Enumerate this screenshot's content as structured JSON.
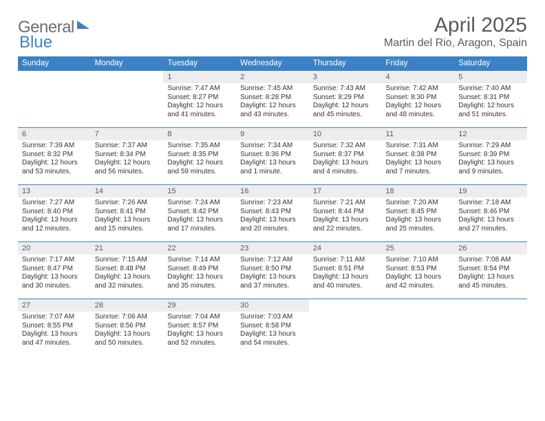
{
  "logo": {
    "part1": "General",
    "part2": "Blue"
  },
  "title": "April 2025",
  "location": "Martin del Rio, Aragon, Spain",
  "colors": {
    "header_bg": "#3b82c4",
    "header_text": "#ffffff",
    "daynum_bg": "#ededed",
    "border": "#3b82c4",
    "text": "#333333",
    "title": "#555a60"
  },
  "weekdays": [
    "Sunday",
    "Monday",
    "Tuesday",
    "Wednesday",
    "Thursday",
    "Friday",
    "Saturday"
  ],
  "weeks": [
    [
      {
        "n": "",
        "d": ""
      },
      {
        "n": "",
        "d": ""
      },
      {
        "n": "1",
        "d": "Sunrise: 7:47 AM\nSunset: 8:27 PM\nDaylight: 12 hours and 41 minutes."
      },
      {
        "n": "2",
        "d": "Sunrise: 7:45 AM\nSunset: 8:28 PM\nDaylight: 12 hours and 43 minutes."
      },
      {
        "n": "3",
        "d": "Sunrise: 7:43 AM\nSunset: 8:29 PM\nDaylight: 12 hours and 45 minutes."
      },
      {
        "n": "4",
        "d": "Sunrise: 7:42 AM\nSunset: 8:30 PM\nDaylight: 12 hours and 48 minutes."
      },
      {
        "n": "5",
        "d": "Sunrise: 7:40 AM\nSunset: 8:31 PM\nDaylight: 12 hours and 51 minutes."
      }
    ],
    [
      {
        "n": "6",
        "d": "Sunrise: 7:39 AM\nSunset: 8:32 PM\nDaylight: 12 hours and 53 minutes."
      },
      {
        "n": "7",
        "d": "Sunrise: 7:37 AM\nSunset: 8:34 PM\nDaylight: 12 hours and 56 minutes."
      },
      {
        "n": "8",
        "d": "Sunrise: 7:35 AM\nSunset: 8:35 PM\nDaylight: 12 hours and 59 minutes."
      },
      {
        "n": "9",
        "d": "Sunrise: 7:34 AM\nSunset: 8:36 PM\nDaylight: 13 hours and 1 minute."
      },
      {
        "n": "10",
        "d": "Sunrise: 7:32 AM\nSunset: 8:37 PM\nDaylight: 13 hours and 4 minutes."
      },
      {
        "n": "11",
        "d": "Sunrise: 7:31 AM\nSunset: 8:38 PM\nDaylight: 13 hours and 7 minutes."
      },
      {
        "n": "12",
        "d": "Sunrise: 7:29 AM\nSunset: 8:39 PM\nDaylight: 13 hours and 9 minutes."
      }
    ],
    [
      {
        "n": "13",
        "d": "Sunrise: 7:27 AM\nSunset: 8:40 PM\nDaylight: 13 hours and 12 minutes."
      },
      {
        "n": "14",
        "d": "Sunrise: 7:26 AM\nSunset: 8:41 PM\nDaylight: 13 hours and 15 minutes."
      },
      {
        "n": "15",
        "d": "Sunrise: 7:24 AM\nSunset: 8:42 PM\nDaylight: 13 hours and 17 minutes."
      },
      {
        "n": "16",
        "d": "Sunrise: 7:23 AM\nSunset: 8:43 PM\nDaylight: 13 hours and 20 minutes."
      },
      {
        "n": "17",
        "d": "Sunrise: 7:21 AM\nSunset: 8:44 PM\nDaylight: 13 hours and 22 minutes."
      },
      {
        "n": "18",
        "d": "Sunrise: 7:20 AM\nSunset: 8:45 PM\nDaylight: 13 hours and 25 minutes."
      },
      {
        "n": "19",
        "d": "Sunrise: 7:18 AM\nSunset: 8:46 PM\nDaylight: 13 hours and 27 minutes."
      }
    ],
    [
      {
        "n": "20",
        "d": "Sunrise: 7:17 AM\nSunset: 8:47 PM\nDaylight: 13 hours and 30 minutes."
      },
      {
        "n": "21",
        "d": "Sunrise: 7:15 AM\nSunset: 8:48 PM\nDaylight: 13 hours and 32 minutes."
      },
      {
        "n": "22",
        "d": "Sunrise: 7:14 AM\nSunset: 8:49 PM\nDaylight: 13 hours and 35 minutes."
      },
      {
        "n": "23",
        "d": "Sunrise: 7:12 AM\nSunset: 8:50 PM\nDaylight: 13 hours and 37 minutes."
      },
      {
        "n": "24",
        "d": "Sunrise: 7:11 AM\nSunset: 8:51 PM\nDaylight: 13 hours and 40 minutes."
      },
      {
        "n": "25",
        "d": "Sunrise: 7:10 AM\nSunset: 8:53 PM\nDaylight: 13 hours and 42 minutes."
      },
      {
        "n": "26",
        "d": "Sunrise: 7:08 AM\nSunset: 8:54 PM\nDaylight: 13 hours and 45 minutes."
      }
    ],
    [
      {
        "n": "27",
        "d": "Sunrise: 7:07 AM\nSunset: 8:55 PM\nDaylight: 13 hours and 47 minutes."
      },
      {
        "n": "28",
        "d": "Sunrise: 7:06 AM\nSunset: 8:56 PM\nDaylight: 13 hours and 50 minutes."
      },
      {
        "n": "29",
        "d": "Sunrise: 7:04 AM\nSunset: 8:57 PM\nDaylight: 13 hours and 52 minutes."
      },
      {
        "n": "30",
        "d": "Sunrise: 7:03 AM\nSunset: 8:58 PM\nDaylight: 13 hours and 54 minutes."
      },
      {
        "n": "",
        "d": ""
      },
      {
        "n": "",
        "d": ""
      },
      {
        "n": "",
        "d": ""
      }
    ]
  ]
}
